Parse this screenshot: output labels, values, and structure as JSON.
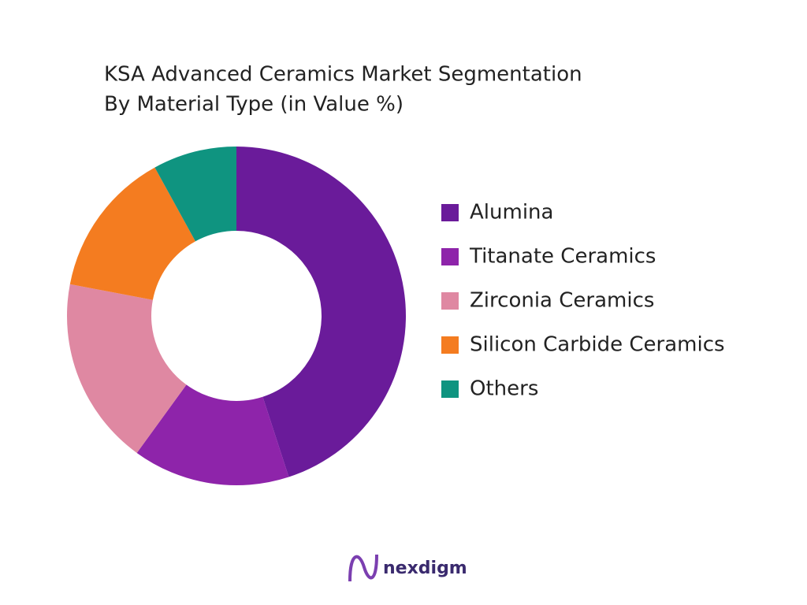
{
  "chart_data": {
    "type": "donut",
    "title": "KSA Advanced Ceramics Market Segmentation",
    "subtitle": "By Material Type  (in Value %)",
    "categories": [
      "Alumina",
      "Titanate Ceramics",
      "Zirconia Ceramics",
      "Silicon Carbide Ceramics",
      "Others"
    ],
    "values": [
      45,
      15,
      18,
      14,
      8
    ],
    "colors": [
      "#6a1b9a",
      "#8e24aa",
      "#df88a2",
      "#f47c20",
      "#0f9480"
    ],
    "legend": "right"
  },
  "brand": "nexdigm"
}
